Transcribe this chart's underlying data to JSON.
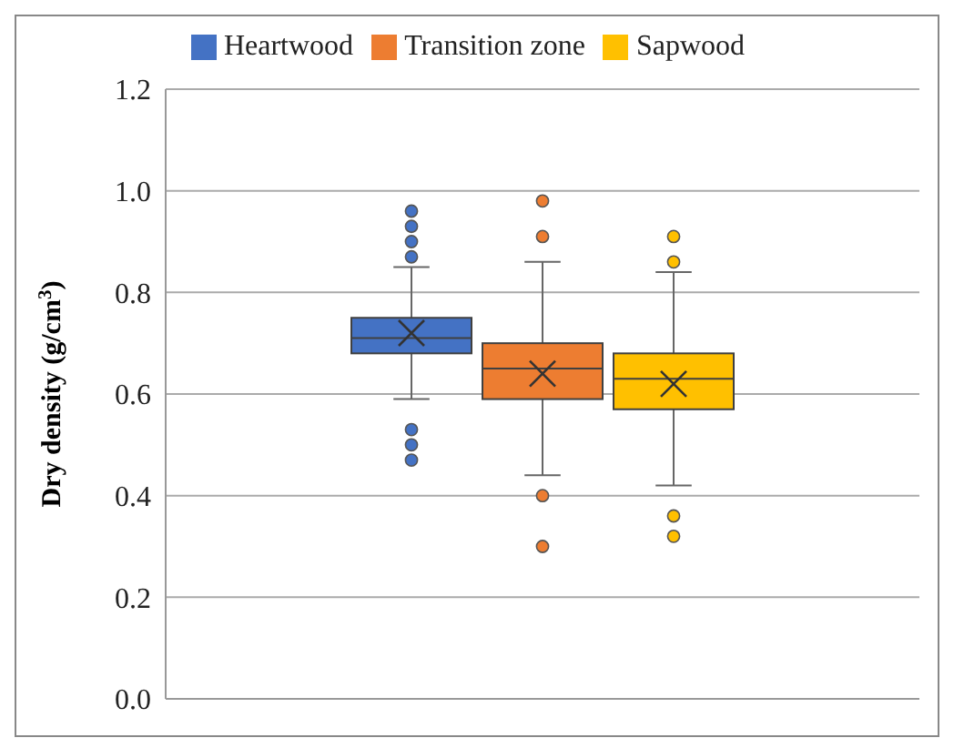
{
  "chart_data": {
    "type": "box",
    "categories": [
      null
    ],
    "ylabel": "Dry density (g/cm$^{3}$)",
    "ylim": [
      0,
      1.2
    ],
    "yticks": [
      {
        "value": 0,
        "label": "0.0"
      },
      {
        "value": 0.2,
        "label": "0.2"
      },
      {
        "value": 0.4,
        "label": "0.4"
      },
      {
        "value": 0.6,
        "label": "0.6"
      },
      {
        "value": 0.8,
        "label": "0.8"
      },
      {
        "value": 1,
        "label": "1.0"
      },
      {
        "value": 1.2,
        "label": "1.2"
      }
    ],
    "grid": "y",
    "legend": "top",
    "series": [
      {
        "name": "Heartwood",
        "color": "#4472c4",
        "boxes": [
          {
            "low": 0.59,
            "q1": 0.68,
            "median": 0.71,
            "q3": 0.75,
            "high": 0.85,
            "mean": 0.72,
            "outliers": [
              0.96,
              0.93,
              0.9,
              0.87,
              0.53,
              0.5,
              0.47
            ]
          }
        ]
      },
      {
        "name": "Transition zone",
        "color": "#ed7d31",
        "boxes": [
          {
            "low": 0.44,
            "q1": 0.59,
            "median": 0.65,
            "q3": 0.7,
            "high": 0.86,
            "mean": 0.64,
            "outliers": [
              0.98,
              0.91,
              0.4,
              0.3
            ]
          }
        ]
      },
      {
        "name": "Sapwood",
        "color": "#ffc000",
        "boxes": [
          {
            "low": 0.42,
            "q1": 0.57,
            "median": 0.63,
            "q3": 0.68,
            "high": 0.84,
            "mean": 0.62,
            "outliers": [
              0.91,
              0.86,
              0.36,
              0.32
            ]
          }
        ]
      }
    ]
  }
}
